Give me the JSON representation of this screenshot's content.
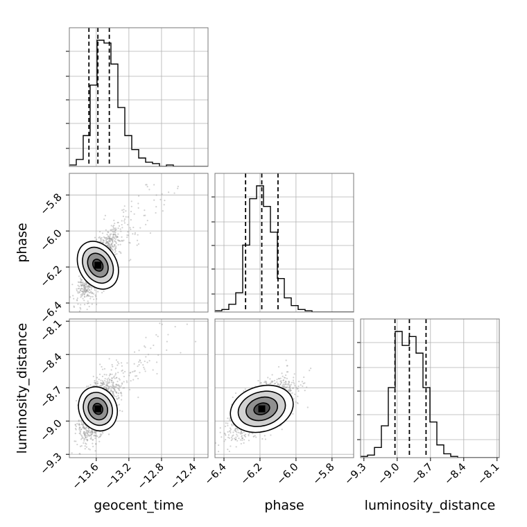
{
  "chart_data": {
    "type": "corner",
    "parameters": [
      {
        "key": "geocent_time",
        "label": "geocent_time",
        "range": [
          -13.93,
          -12.23
        ],
        "ticks": [
          "−13.6",
          "−13.2",
          "−12.8",
          "−12.4"
        ],
        "tick_values": [
          -13.6,
          -13.2,
          -12.8,
          -12.4
        ],
        "quantiles": [
          -13.69,
          -13.58,
          -13.44
        ]
      },
      {
        "key": "phase",
        "label": "phase",
        "range": [
          -6.45,
          -5.68
        ],
        "ticks": [
          "−6.4",
          "−6.2",
          "−6.0",
          "−5.8"
        ],
        "tick_values": [
          -6.4,
          -6.2,
          -6.0,
          -5.8
        ],
        "quantiles": [
          -6.28,
          -6.19,
          -6.1
        ]
      },
      {
        "key": "luminosity_distance",
        "label": "luminosity_distance",
        "range": [
          -9.33,
          -8.08
        ],
        "ticks": [
          "−9.3",
          "−9.0",
          "−8.7",
          "−8.4",
          "−8.1"
        ],
        "tick_values": [
          -9.3,
          -9.0,
          -8.7,
          -8.4,
          -8.1
        ],
        "quantiles": [
          -9.02,
          -8.89,
          -8.74
        ]
      }
    ],
    "histograms": [
      {
        "param": "geocent_time",
        "bins_start": -13.93,
        "bin_width": 0.085,
        "counts": [
          1,
          5,
          22,
          58,
          90,
          88,
          73,
          42,
          22,
          12,
          6,
          3,
          2,
          0,
          1,
          0,
          0,
          0,
          0,
          0
        ]
      },
      {
        "param": "phase",
        "bins_start": -6.45,
        "bin_width": 0.0385,
        "counts": [
          1,
          2,
          6,
          15,
          52,
          88,
          98,
          82,
          62,
          26,
          11,
          5,
          2,
          1,
          0,
          0,
          0,
          0,
          0,
          0
        ]
      },
      {
        "param": "luminosity_distance",
        "bins_start": -9.33,
        "bin_width": 0.0625,
        "counts": [
          1,
          2,
          8,
          25,
          55,
          99,
          88,
          95,
          82,
          55,
          28,
          10,
          3,
          1,
          0,
          0,
          0,
          0,
          0,
          0
        ]
      }
    ],
    "pairs": [
      {
        "x": "geocent_time",
        "y": "phase",
        "center": [
          -13.58,
          -6.19
        ],
        "sd": [
          0.11,
          0.09
        ],
        "corr": 0.75,
        "tail": true
      },
      {
        "x": "geocent_time",
        "y": "luminosity_distance",
        "center": [
          -13.58,
          -8.89
        ],
        "sd": [
          0.11,
          0.13
        ],
        "corr": 0.55,
        "tail": true
      },
      {
        "x": "phase",
        "y": "luminosity_distance",
        "center": [
          -6.19,
          -8.89
        ],
        "sd": [
          0.085,
          0.13
        ],
        "corr": 0.65,
        "tail": false
      }
    ],
    "grid": true,
    "contour_levels_sigma": [
      0.5,
      1.0,
      1.5,
      2.0
    ],
    "colors": {
      "hist": "#000000",
      "quantile": "#000000",
      "points": "#9a9a9a",
      "contour": "#000000",
      "grid": "#b0b0b0"
    }
  }
}
